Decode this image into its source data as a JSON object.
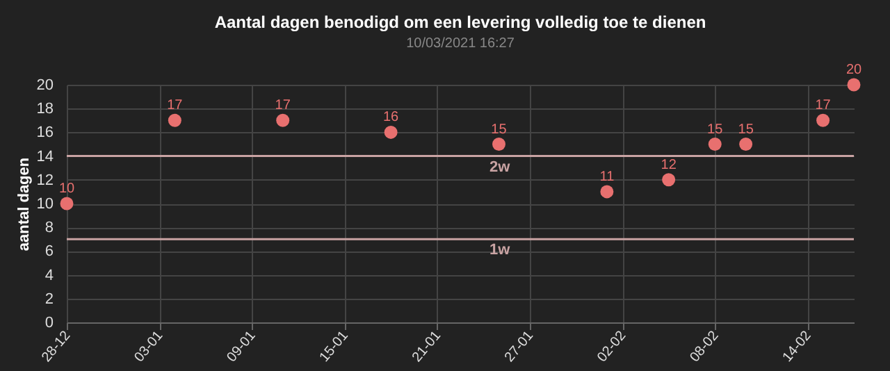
{
  "chart_data": {
    "type": "scatter",
    "title": "Aantal dagen benodigd om een levering volledig toe te dienen",
    "ylabel": "aantal dagen",
    "annotations": [
      "10/03/2021 16:27"
    ],
    "x": [
      "2020-12-28",
      "2021-01-04",
      "2021-01-11",
      "2021-01-18",
      "2021-01-25",
      "2021-02-01",
      "2021-02-05",
      "2021-02-08",
      "2021-02-10",
      "2021-02-15",
      "2021-02-17"
    ],
    "values": [
      10,
      17,
      17,
      16,
      15,
      11,
      12,
      15,
      15,
      17,
      20
    ],
    "color": "#e8706f",
    "marker": "circle",
    "data_labels": true,
    "xlim": [
      "2020-12-28",
      "2021-02-17"
    ],
    "xticks": [
      {
        "value": "2020-12-28",
        "label": "28-12"
      },
      {
        "value": "2021-01-03",
        "label": "03-01"
      },
      {
        "value": "2021-01-09",
        "label": "09-01"
      },
      {
        "value": "2021-01-15",
        "label": "15-01"
      },
      {
        "value": "2021-01-21",
        "label": "21-01"
      },
      {
        "value": "2021-01-27",
        "label": "27-01"
      },
      {
        "value": "2021-02-02",
        "label": "02-02"
      },
      {
        "value": "2021-02-08",
        "label": "08-02"
      },
      {
        "value": "2021-02-14",
        "label": "14-02"
      }
    ],
    "ylim": [
      0,
      20
    ],
    "yticks": [
      0,
      2,
      4,
      6,
      8,
      10,
      12,
      14,
      16,
      18,
      20
    ],
    "grid": true,
    "ref_lines": [
      {
        "axis": "y",
        "value": 14,
        "label": "2w",
        "color": "#c9a3a3"
      },
      {
        "axis": "y",
        "value": 7,
        "label": "1w",
        "color": "#c9a3a3"
      }
    ]
  }
}
